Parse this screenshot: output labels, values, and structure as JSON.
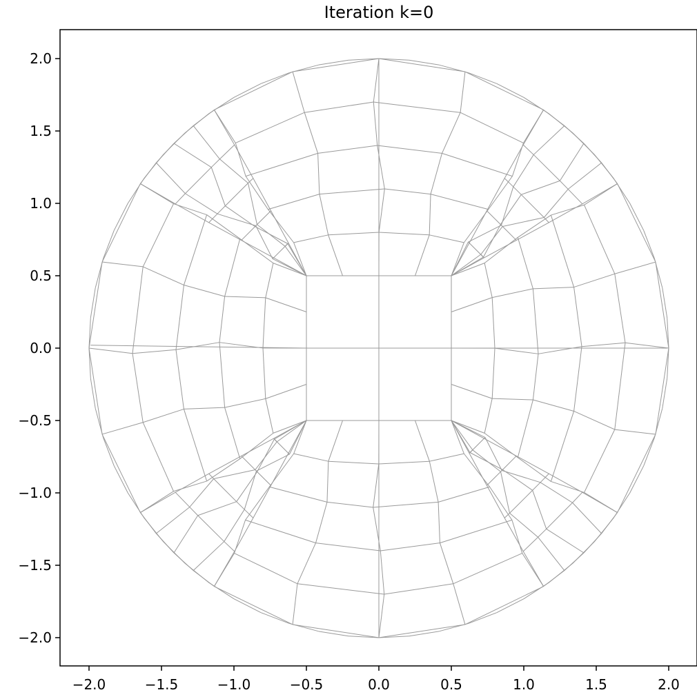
{
  "chart_data": {
    "type": "line",
    "title": "Iteration k=0",
    "xlabel": "",
    "ylabel": "",
    "xlim": [
      -2.2,
      2.2
    ],
    "ylim": [
      -2.2,
      2.2
    ],
    "x_ticks": [
      -2.0,
      -1.5,
      -1.0,
      -0.5,
      0.0,
      0.5,
      1.0,
      1.5,
      2.0
    ],
    "x_tick_labels": [
      "−2.0",
      "−1.5",
      "−1.0",
      "−0.5",
      "0.0",
      "0.5",
      "1.0",
      "1.5",
      "2.0"
    ],
    "y_ticks": [
      2.0,
      1.5,
      1.0,
      0.5,
      0.0,
      -0.5,
      -1.0,
      -1.5,
      -2.0
    ],
    "y_tick_labels": [
      "2.0",
      "1.5",
      "1.0",
      "0.5",
      "0.0",
      "−0.5",
      "−1.0",
      "−1.5",
      "−2.0"
    ],
    "grid": false,
    "mesh_color": "#999999",
    "mesh_description": "Quadrilateral mesh of a disk of radius 2",
    "inner_grid": {
      "x_lines": [
        -0.5,
        0.0,
        0.5
      ],
      "y_lines": [
        -0.5,
        0.0,
        0.5
      ],
      "x_range": [
        -0.5,
        0.5
      ],
      "y_range": [
        -0.5,
        0.5
      ]
    },
    "sector_top": {
      "rings": [
        [
          [
            -0.5,
            0.5
          ],
          [
            0.0,
            0.5
          ],
          [
            0.5,
            0.5
          ]
        ],
        [
          [
            -0.37,
            0.88
          ],
          [
            0.0,
            0.88
          ],
          [
            0.37,
            0.88
          ]
        ],
        [
          [
            -0.25,
            1.26
          ],
          [
            0.0,
            1.26
          ],
          [
            0.25,
            1.26
          ]
        ],
        [
          [
            -0.23,
            1.62
          ],
          [
            0.0,
            1.62
          ],
          [
            0.23,
            1.62
          ]
        ],
        [
          [
            -0.2,
            2.0
          ],
          [
            0.0,
            2.0
          ],
          [
            0.2,
            2.0
          ]
        ]
      ],
      "outer_fan": [
        [
          -0.5,
          0.5
        ],
        [
          -0.65,
          0.66
        ],
        [
          -0.8,
          0.84
        ],
        [
          -1.02,
          0.99
        ],
        [
          -1.25,
          1.25
        ],
        [
          -1.0,
          1.53
        ],
        [
          -1.1,
          1.68
        ],
        [
          -0.77,
          1.83
        ],
        [
          -0.49,
          1.94
        ],
        [
          -0.2,
          2.0
        ],
        [
          0.2,
          2.0
        ],
        [
          0.49,
          1.94
        ],
        [
          0.77,
          1.83
        ],
        [
          1.1,
          1.68
        ],
        [
          1.0,
          1.53
        ],
        [
          1.25,
          1.25
        ],
        [
          1.02,
          0.99
        ],
        [
          0.8,
          0.84
        ],
        [
          0.65,
          0.66
        ],
        [
          0.5,
          0.5
        ]
      ]
    },
    "outer_ring_radius": 2.0,
    "ring_radii": [
      1.24,
      1.63,
      2.0
    ]
  }
}
